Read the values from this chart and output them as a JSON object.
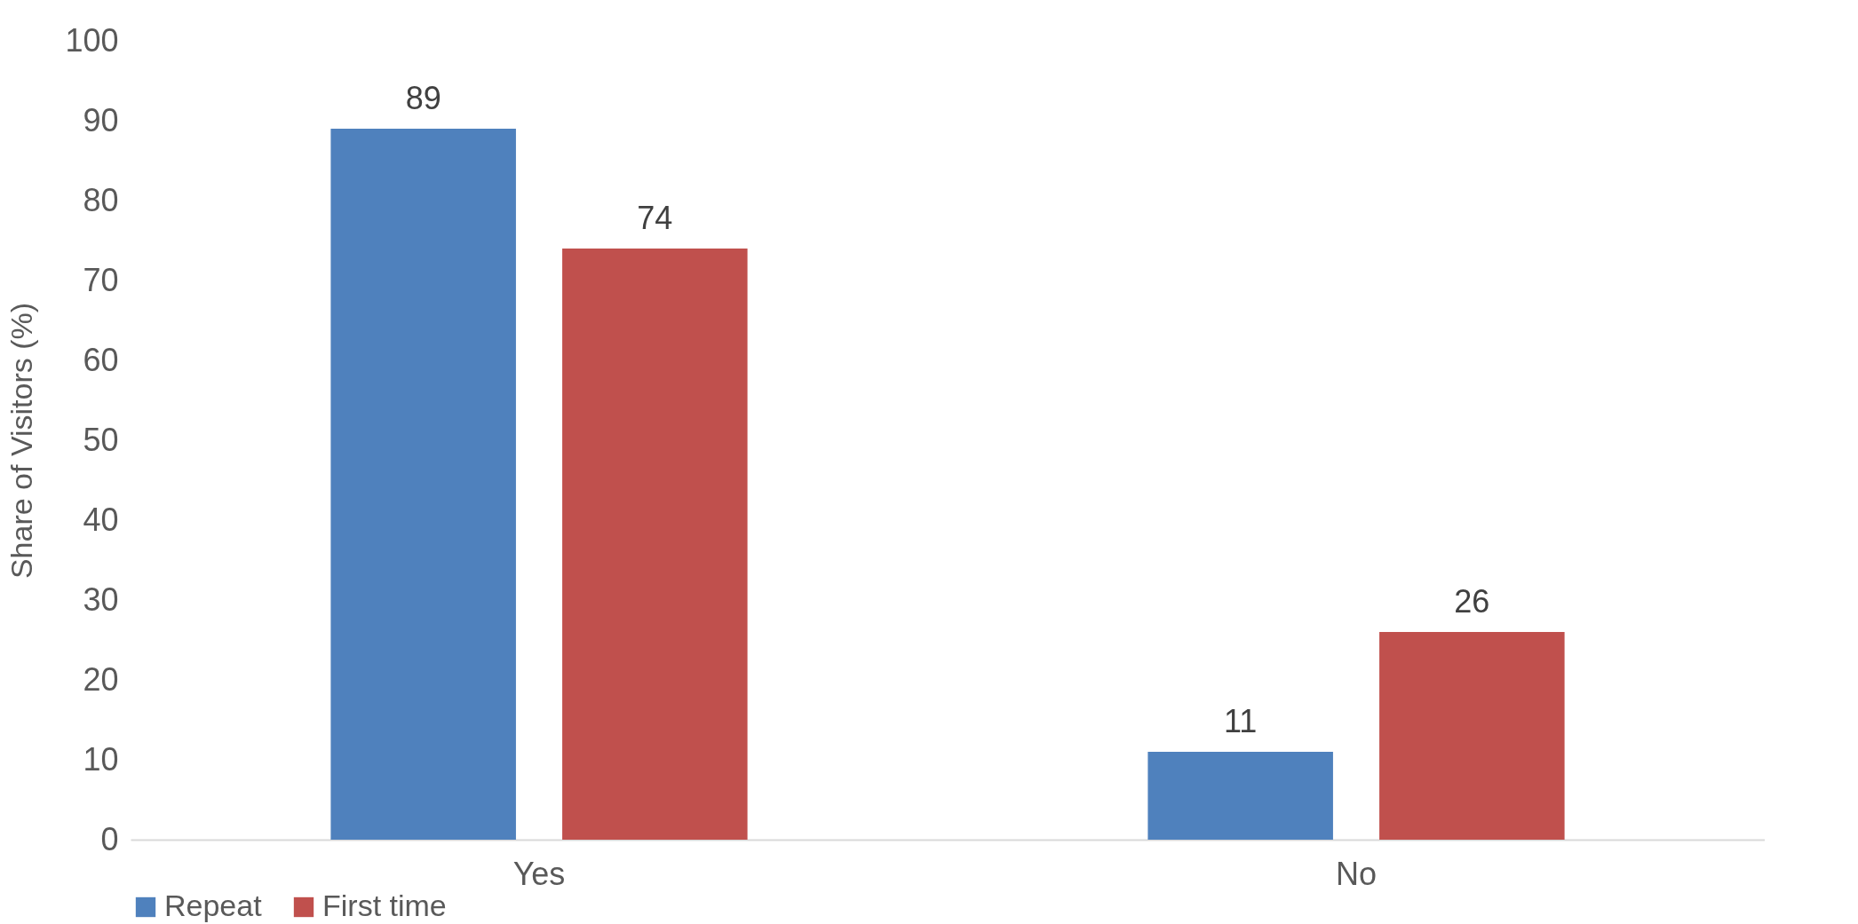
{
  "chart_data": {
    "type": "bar",
    "ylabel": "Share of Visitors (%)",
    "categories": [
      "Yes",
      "No"
    ],
    "series": [
      {
        "name": "Repeat",
        "color": "#4f81bd",
        "values": [
          89,
          11
        ]
      },
      {
        "name": "First time",
        "color": "#c0504d",
        "values": [
          74,
          26
        ]
      }
    ],
    "ylim": [
      0,
      100
    ],
    "yticks": [
      0,
      10,
      20,
      30,
      40,
      50,
      60,
      70,
      80,
      90,
      100
    ],
    "grid": false,
    "legend": "bottom",
    "data_labels": true
  }
}
